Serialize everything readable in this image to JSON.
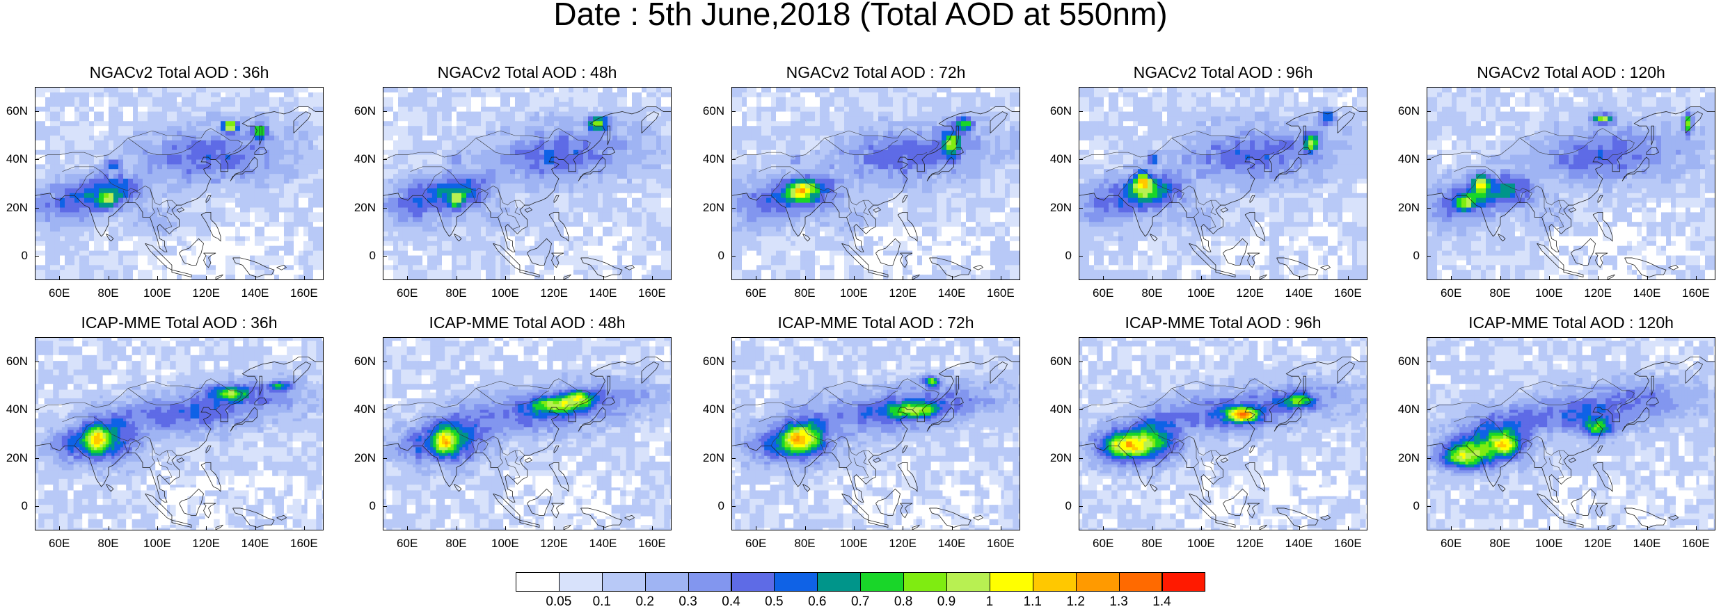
{
  "title": "Date : 5th June,2018 (Total AOD at 550nm)",
  "chart_data": [
    {
      "type": "heatmap",
      "title": "NGACv2 Total AOD : 36h"
    },
    {
      "type": "heatmap",
      "title": "NGACv2 Total AOD : 48h"
    },
    {
      "type": "heatmap",
      "title": "NGACv2 Total AOD : 72h"
    },
    {
      "type": "heatmap",
      "title": "NGACv2 Total AOD : 96h"
    },
    {
      "type": "heatmap",
      "title": "NGACv2 Total AOD : 120h"
    },
    {
      "type": "heatmap",
      "title": "ICAP-MME Total AOD : 36h"
    },
    {
      "type": "heatmap",
      "title": "ICAP-MME Total AOD : 48h"
    },
    {
      "type": "heatmap",
      "title": "ICAP-MME Total AOD : 72h"
    },
    {
      "type": "heatmap",
      "title": "ICAP-MME Total AOD : 96h"
    },
    {
      "type": "heatmap",
      "title": "ICAP-MME Total AOD : 120h"
    }
  ],
  "axes": {
    "lat_ticks": [
      "60N",
      "40N",
      "20N",
      "0"
    ],
    "lon_ticks": [
      "60E",
      "80E",
      "100E",
      "120E",
      "140E",
      "160E"
    ],
    "lat_range": [
      -10,
      70
    ],
    "lon_range": [
      50,
      168
    ]
  },
  "colorbar": {
    "labels": [
      "0.05",
      "0.1",
      "0.2",
      "0.3",
      "0.4",
      "0.5",
      "0.6",
      "0.7",
      "0.8",
      "0.9",
      "1",
      "1.1",
      "1.2",
      "1.3",
      "1.4"
    ],
    "colors": [
      "#ffffff",
      "#d8e2fb",
      "#b8c9f7",
      "#9fb4f3",
      "#8296ef",
      "#5e6be6",
      "#0f62e6",
      "#00958a",
      "#19d629",
      "#7fec11",
      "#b8f052",
      "#ffff00",
      "#ffc800",
      "#ff9a00",
      "#ff6a00",
      "#ff1a00"
    ]
  }
}
